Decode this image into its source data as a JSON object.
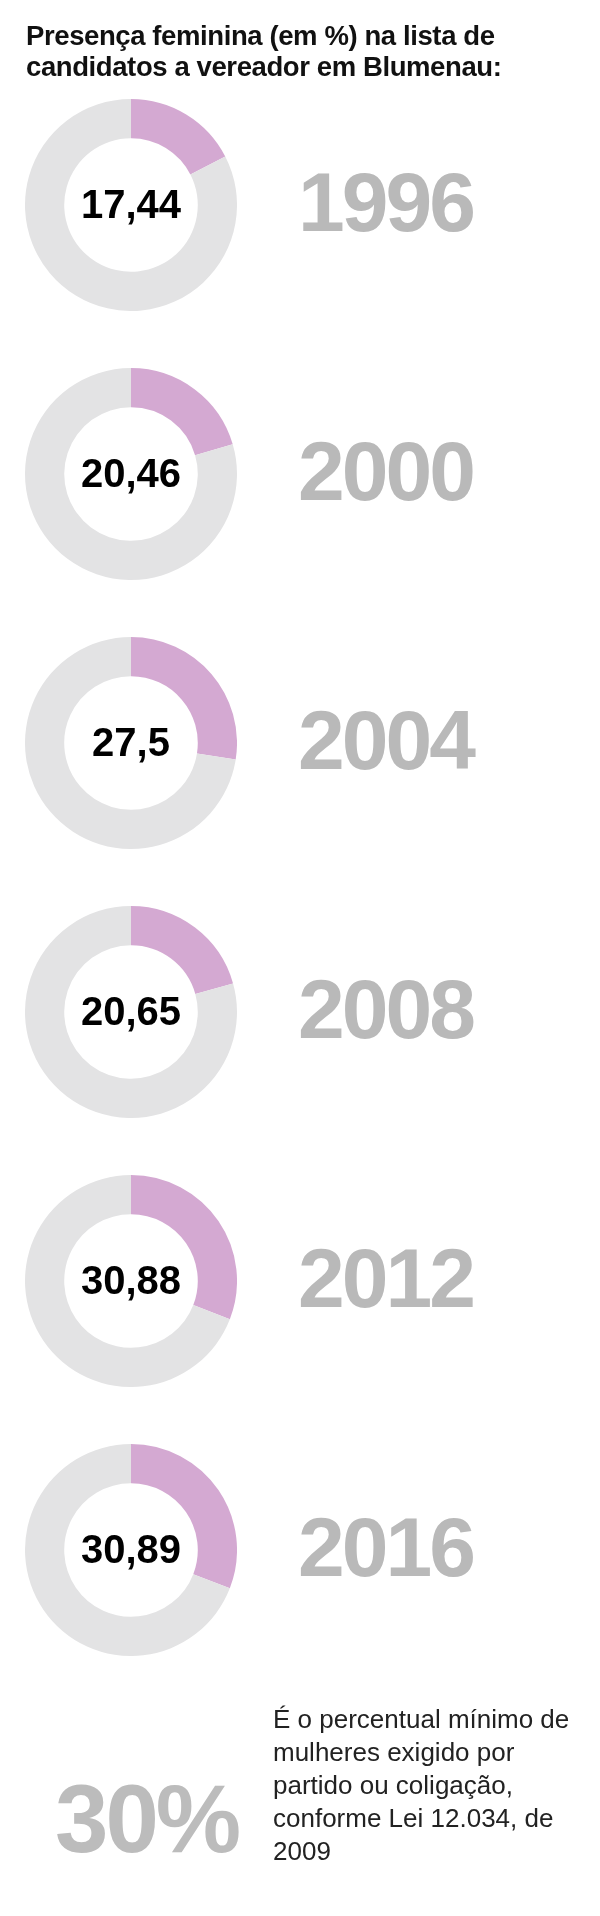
{
  "chart_data": [
    {
      "type": "donut",
      "title": "Presença feminina (em %) na lista de candidatos a vereador em Blumenau:",
      "categories": [
        null,
        null
      ],
      "values": [
        17.44,
        82.56
      ],
      "colors": [
        "#d4a9d2",
        "#e3e3e4"
      ],
      "value_labels": [
        "17,44",
        null
      ],
      "annotations": [
        "1996"
      ]
    },
    {
      "type": "donut",
      "categories": [
        null,
        null
      ],
      "values": [
        20.46,
        79.54
      ],
      "colors": [
        "#d4a9d2",
        "#e3e3e4"
      ],
      "value_labels": [
        "20,46",
        null
      ],
      "annotations": [
        "2000"
      ]
    },
    {
      "type": "donut",
      "categories": [
        null,
        null
      ],
      "values": [
        27.5,
        72.5
      ],
      "colors": [
        "#d4a9d2",
        "#e3e3e4"
      ],
      "value_labels": [
        "27,5",
        null
      ],
      "annotations": [
        "2004"
      ]
    },
    {
      "type": "donut",
      "categories": [
        null,
        null
      ],
      "values": [
        20.65,
        79.35
      ],
      "colors": [
        "#d4a9d2",
        "#e3e3e4"
      ],
      "value_labels": [
        "20,65",
        null
      ],
      "annotations": [
        "2008"
      ]
    },
    {
      "type": "donut",
      "categories": [
        null,
        null
      ],
      "values": [
        30.88,
        69.12
      ],
      "colors": [
        "#d4a9d2",
        "#e3e3e4"
      ],
      "value_labels": [
        "30,88",
        null
      ],
      "annotations": [
        "2012"
      ]
    },
    {
      "type": "donut",
      "categories": [
        null,
        null
      ],
      "values": [
        30.89,
        69.11
      ],
      "colors": [
        "#d4a9d2",
        "#e3e3e4"
      ],
      "value_labels": [
        "30,89",
        null
      ],
      "annotations": [
        "2016"
      ]
    },
    {
      "type": "other",
      "annotations": [
        "30%",
        "É o percentual mínimo de mulheres exigido por partido ou coligação, conforme Lei 12.034, de 2009"
      ]
    }
  ]
}
